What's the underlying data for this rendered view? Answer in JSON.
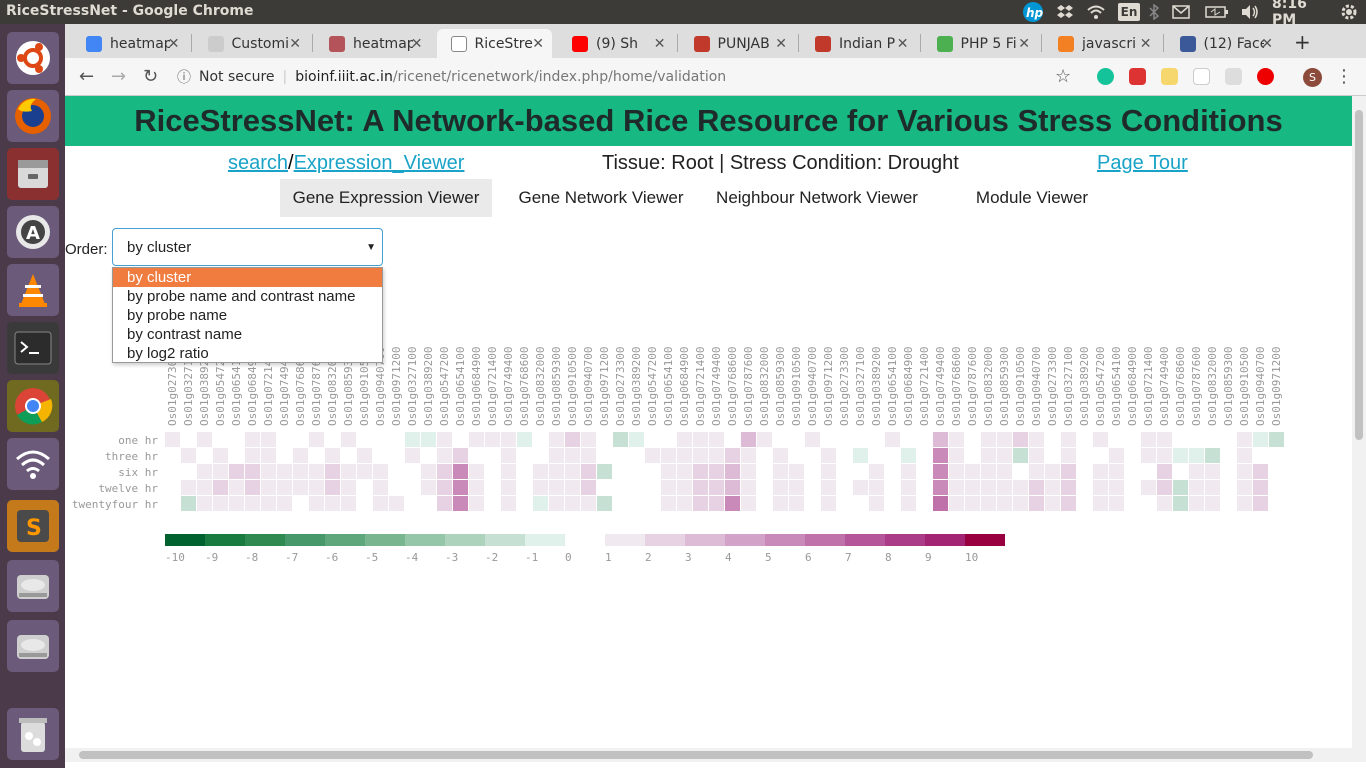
{
  "os": {
    "window_title": "RiceStressNet - Google Chrome",
    "lang": "En",
    "time": "8:16 PM"
  },
  "tabs": [
    {
      "label": "heatmap",
      "color": "#4285f4"
    },
    {
      "label": "Customi",
      "color": "#cccccc"
    },
    {
      "label": "heatmap",
      "color": "#b5535b"
    },
    {
      "label": "RiceStre",
      "color": "#ffffff"
    },
    {
      "label": "(9) Sh",
      "color": "#ff0000"
    },
    {
      "label": "PUNJAB",
      "color": "#c0392b"
    },
    {
      "label": "Indian P",
      "color": "#c0392b"
    },
    {
      "label": "PHP 5 Fi",
      "color": "#4caf50"
    },
    {
      "label": "javascri",
      "color": "#f48024"
    },
    {
      "label": "(12) Face",
      "color": "#3b5998"
    }
  ],
  "address": {
    "security": "Not secure",
    "host": "bioinf.iiit.ac.in",
    "path": "/ricenet/ricenetwork/index.php/home/validation"
  },
  "site": {
    "title": "RiceStressNet: A Network-based Rice Resource for Various Stress Conditions",
    "link_search": "search",
    "link_expression": "Expression_Viewer",
    "context": "Tissue: Root | Stress Condition: Drought",
    "page_tour": "Page Tour"
  },
  "viewer_tabs": [
    "Gene Expression Viewer",
    "Gene Network Viewer",
    "Neighbour Network Viewer",
    "Module Viewer"
  ],
  "order": {
    "label": "Order:",
    "selected": "by cluster",
    "options": [
      "by cluster",
      "by probe name and contrast name",
      "by probe name",
      "by contrast name",
      "by log2 ratio"
    ]
  },
  "chart_data": {
    "type": "heatmap",
    "rows": [
      "one hr",
      "three hr",
      "six hr",
      "twelve hr",
      "twentyfour hr"
    ],
    "columns": [
      "Os01g0273000",
      "Os01g0327100",
      "Os01g0389200",
      "Os01g0547200",
      "Os01g0654100",
      "Os01g0684900",
      "Os01g0721400",
      "Os01g0749400",
      "Os01g0768600",
      "Os01g0787600",
      "Os01g0832000",
      "Os01g0859300",
      "Os01g0910500",
      "Os01g0940700",
      "Os01g0971200",
      "Os01g0327100",
      "Os01g0389200",
      "Os01g0547200",
      "Os01g0654100",
      "Os01g0684900",
      "Os01g0721400",
      "Os01g0749400",
      "Os01g0768600",
      "Os01g0832000",
      "Os01g0859300",
      "Os01g0910500",
      "Os01g0940700",
      "Os01g0971200",
      "Os01g0273300",
      "Os01g0389200",
      "Os01g0547200",
      "Os01g0654100",
      "Os01g0684900",
      "Os01g0721400",
      "Os01g0749400",
      "Os01g0768600",
      "Os01g0787600",
      "Os01g0832000",
      "Os01g0859300",
      "Os01g0910500",
      "Os01g0940700",
      "Os01g0971200",
      "Os01g0273300",
      "Os01g0327100",
      "Os01g0389200",
      "Os01g0654100",
      "Os01g0684900",
      "Os01g0721400",
      "Os01g0749400",
      "Os01g0768600",
      "Os01g0787600",
      "Os01g0832000",
      "Os01g0859300",
      "Os01g0910500",
      "Os01g0940700",
      "Os01g0273300",
      "Os01g0327100",
      "Os01g0389200",
      "Os01g0547200",
      "Os01g0654100",
      "Os01g0684900",
      "Os01g0721400",
      "Os01g0749400",
      "Os01g0768600",
      "Os01g0787600",
      "Os01g0832000",
      "Os01g0859300",
      "Os01g0910500",
      "Os01g0940700",
      "Os01g0971200"
    ],
    "scale_ticks": [
      "-10",
      "-9",
      "-8",
      "-7",
      "-6",
      "-5",
      "-4",
      "-3",
      "-2",
      "-1",
      "0",
      "1",
      "2",
      "3",
      "4",
      "5",
      "6",
      "7",
      "8",
      "9",
      "10"
    ],
    "scale_colors": [
      "#00632f",
      "#1a7b41",
      "#2f8a52",
      "#46986a",
      "#5ea67c",
      "#79b690",
      "#95c6a7",
      "#aed3bd",
      "#c6e1d3",
      "#e0f0eb",
      "#ffffff",
      "#f1e9f0",
      "#e7d2e4",
      "#ddbad6",
      "#d3a2c8",
      "#c98ab9",
      "#bf71a9",
      "#b5569a",
      "#ab3c87",
      "#a12572",
      "#98003f"
    ],
    "values": [
      [
        1,
        0,
        1,
        0,
        0,
        1,
        1,
        0,
        0,
        1,
        0,
        1,
        0,
        0,
        0,
        -1,
        -1,
        1,
        0,
        1,
        1,
        1,
        -1,
        0,
        1,
        2,
        1,
        0,
        -2,
        -1,
        0,
        0,
        1,
        1,
        1,
        0,
        3,
        1,
        0,
        0,
        1,
        0,
        0,
        0,
        0,
        1,
        0,
        0,
        3,
        1,
        0,
        1,
        1,
        2,
        1,
        0,
        1,
        0,
        1,
        0,
        0,
        1,
        1,
        0,
        0,
        0,
        0,
        1,
        -1,
        -2
      ],
      [
        0,
        1,
        0,
        1,
        0,
        1,
        1,
        0,
        1,
        0,
        1,
        0,
        1,
        0,
        0,
        1,
        0,
        1,
        2,
        0,
        0,
        1,
        0,
        0,
        1,
        1,
        1,
        0,
        0,
        0,
        1,
        1,
        1,
        1,
        1,
        2,
        1,
        0,
        1,
        0,
        0,
        1,
        0,
        -1,
        0,
        0,
        -1,
        0,
        5,
        1,
        0,
        1,
        1,
        -2,
        1,
        0,
        1,
        0,
        0,
        1,
        0,
        1,
        1,
        -1,
        -1,
        -2,
        0,
        1,
        0,
        0
      ],
      [
        0,
        0,
        1,
        1,
        2,
        2,
        1,
        1,
        1,
        1,
        2,
        1,
        1,
        1,
        0,
        0,
        1,
        2,
        5,
        1,
        0,
        1,
        0,
        1,
        1,
        1,
        2,
        -2,
        0,
        0,
        0,
        1,
        1,
        2,
        2,
        3,
        1,
        0,
        1,
        1,
        0,
        1,
        0,
        0,
        1,
        0,
        1,
        0,
        5,
        1,
        1,
        1,
        1,
        0,
        1,
        1,
        2,
        0,
        1,
        1,
        0,
        0,
        2,
        0,
        1,
        1,
        0,
        1,
        2,
        0
      ],
      [
        0,
        1,
        1,
        2,
        1,
        2,
        1,
        1,
        1,
        1,
        2,
        1,
        0,
        1,
        0,
        0,
        1,
        2,
        5,
        1,
        0,
        1,
        0,
        1,
        1,
        1,
        2,
        0,
        0,
        0,
        0,
        1,
        1,
        2,
        2,
        3,
        1,
        0,
        1,
        1,
        0,
        1,
        0,
        1,
        1,
        0,
        1,
        0,
        5,
        1,
        1,
        1,
        1,
        1,
        2,
        1,
        2,
        0,
        1,
        1,
        0,
        1,
        2,
        -2,
        1,
        1,
        0,
        1,
        2,
        0
      ],
      [
        0,
        -2,
        1,
        1,
        1,
        1,
        1,
        1,
        0,
        1,
        1,
        1,
        0,
        1,
        1,
        0,
        0,
        2,
        5,
        1,
        0,
        1,
        0,
        -1,
        1,
        1,
        1,
        -2,
        0,
        0,
        0,
        1,
        1,
        2,
        2,
        5,
        1,
        0,
        1,
        1,
        0,
        1,
        0,
        0,
        1,
        0,
        1,
        0,
        6,
        1,
        1,
        1,
        1,
        1,
        2,
        1,
        2,
        0,
        1,
        1,
        0,
        0,
        1,
        -2,
        1,
        1,
        0,
        1,
        2,
        0
      ]
    ]
  }
}
